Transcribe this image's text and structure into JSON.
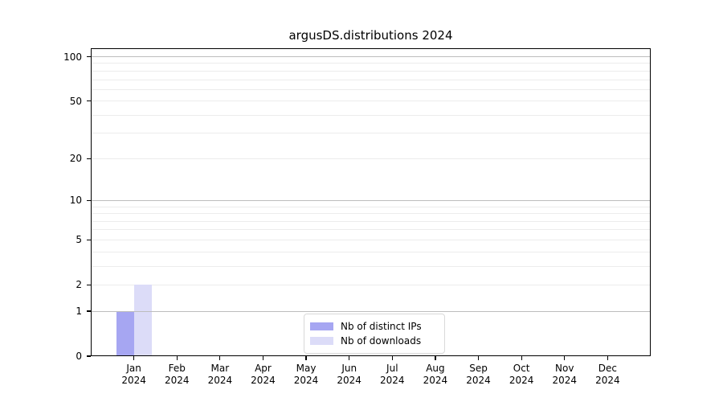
{
  "title": "argusDS.distributions 2024",
  "legend": {
    "items": [
      {
        "label": "Nb of distinct IPs",
        "color": "#a6a6f2"
      },
      {
        "label": "Nb of downloads",
        "color": "#dcdcf8"
      }
    ]
  },
  "chart_data": {
    "type": "bar",
    "title": "argusDS.distributions 2024",
    "categories": [
      "Jan",
      "Feb",
      "Mar",
      "Apr",
      "May",
      "Jun",
      "Jul",
      "Aug",
      "Sep",
      "Oct",
      "Nov",
      "Dec"
    ],
    "x_year": "2024",
    "series": [
      {
        "name": "Nb of distinct IPs",
        "color": "#a6a6f2",
        "values": [
          1,
          0,
          0,
          0,
          0,
          0,
          0,
          0,
          0,
          0,
          0,
          0
        ]
      },
      {
        "name": "Nb of downloads",
        "color": "#dcdcf8",
        "values": [
          2,
          0,
          0,
          0,
          0,
          0,
          0,
          0,
          0,
          0,
          0,
          0
        ]
      }
    ],
    "xlabel": "",
    "ylabel": "",
    "yscale": "symlog",
    "ylim": [
      0,
      114
    ],
    "ytick_values": [
      0,
      1,
      2,
      5,
      10,
      20,
      50,
      100
    ],
    "major_grid_values": [
      1,
      10,
      100
    ],
    "minor_grid_values": [
      2,
      3,
      4,
      5,
      6,
      7,
      8,
      9,
      20,
      30,
      40,
      50,
      60,
      70,
      80,
      90
    ],
    "grid": true,
    "legend_position": "bottom-center",
    "colors": {
      "major_grid": "#bdbdbd",
      "minor_grid": "#ececec",
      "axis": "#000000",
      "text": "#000000"
    }
  }
}
